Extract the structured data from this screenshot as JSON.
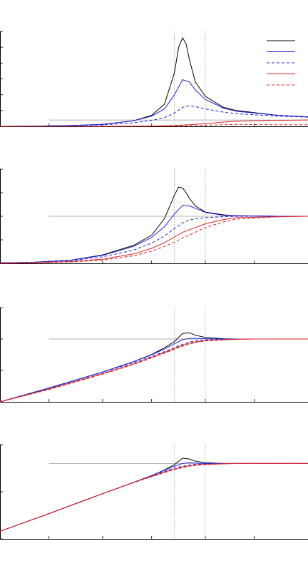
{
  "chart_data": {
    "type": "line",
    "x_scale": "log",
    "xlim": [
      0.1,
      100
    ],
    "reference_lines": {
      "vertical_x": [
        5,
        10
      ]
    },
    "legend": {
      "placement": "top-right",
      "entries": [
        {
          "series": "black-solid",
          "label": ""
        },
        {
          "series": "blue-solid",
          "label": ""
        },
        {
          "series": "blue-dashed",
          "label": ""
        },
        {
          "series": "red-solid",
          "label": ""
        },
        {
          "series": "red-dashed",
          "label": ""
        }
      ]
    },
    "styles": [
      {
        "key": "black-solid",
        "color": "#000000",
        "dash": "solid"
      },
      {
        "key": "blue-solid",
        "color": "#2222dd",
        "dash": "solid"
      },
      {
        "key": "blue-dashed",
        "color": "#2222dd",
        "dash": "dashed"
      },
      {
        "key": "red-solid",
        "color": "#dd2222",
        "dash": "solid"
      },
      {
        "key": "red-dashed",
        "color": "#dd2222",
        "dash": "dashed"
      }
    ],
    "panels": [
      {
        "ylim": [
          0,
          6
        ],
        "reference_y": 0.4,
        "reference_x_start": 0.3,
        "series": [
          {
            "style": "black-solid",
            "x": [
              0.1,
              0.2,
              0.5,
              1,
              2,
              3,
              4,
              5,
              5.5,
              6,
              6.5,
              7,
              8,
              10,
              15,
              20,
              50,
              100
            ],
            "y": [
              0.0,
              0.01,
              0.05,
              0.12,
              0.35,
              0.7,
              1.4,
              3.4,
              5.0,
              5.6,
              5.2,
              4.2,
              2.8,
              1.9,
              1.2,
              1.0,
              0.7,
              0.6
            ]
          },
          {
            "style": "blue-solid",
            "x": [
              0.1,
              0.2,
              0.5,
              1,
              2,
              3,
              4,
              5,
              6,
              7,
              8,
              10,
              15,
              20,
              50,
              100
            ],
            "y": [
              0.0,
              0.01,
              0.05,
              0.12,
              0.35,
              0.65,
              1.1,
              2.0,
              2.95,
              2.8,
              2.3,
              1.7,
              1.15,
              0.95,
              0.7,
              0.6
            ]
          },
          {
            "style": "blue-dashed",
            "x": [
              0.1,
              0.2,
              0.5,
              1,
              2,
              3,
              4,
              5,
              6,
              7,
              8,
              10,
              15,
              20,
              50,
              100
            ],
            "y": [
              0.0,
              0.01,
              0.04,
              0.09,
              0.22,
              0.38,
              0.55,
              0.85,
              1.2,
              1.3,
              1.25,
              1.1,
              0.9,
              0.8,
              0.65,
              0.58
            ]
          },
          {
            "style": "red-solid",
            "x": [
              0.1,
              0.5,
              1,
              2,
              3,
              5,
              7,
              10,
              15,
              20,
              50,
              100
            ],
            "y": [
              0.0,
              0.0,
              0.0,
              0.01,
              0.02,
              0.05,
              0.1,
              0.17,
              0.27,
              0.32,
              0.38,
              0.4
            ]
          },
          {
            "style": "red-dashed",
            "x": [
              0.1,
              0.5,
              1,
              2,
              3,
              5,
              7,
              10,
              15,
              20,
              50,
              100
            ],
            "y": [
              0.0,
              0.0,
              0.0,
              0.0,
              0.01,
              0.02,
              0.04,
              0.07,
              0.1,
              0.12,
              0.1,
              0.1
            ]
          }
        ]
      },
      {
        "ylim": [
          0,
          2
        ],
        "reference_y": 1,
        "reference_x_start": 0.3,
        "series": [
          {
            "style": "black-solid",
            "x": [
              0.1,
              0.2,
              0.5,
              1,
              2,
              3,
              4,
              5,
              5.5,
              6,
              6.5,
              7,
              8,
              10,
              15,
              20,
              50,
              100
            ],
            "y": [
              0.01,
              0.02,
              0.07,
              0.18,
              0.38,
              0.6,
              0.95,
              1.45,
              1.62,
              1.6,
              1.5,
              1.38,
              1.22,
              1.09,
              1.03,
              1.01,
              1.0,
              1.0
            ]
          },
          {
            "style": "blue-solid",
            "x": [
              0.1,
              0.2,
              0.5,
              1,
              2,
              3,
              4,
              5,
              6,
              7,
              8,
              10,
              15,
              20,
              50,
              100
            ],
            "y": [
              0.01,
              0.02,
              0.07,
              0.17,
              0.36,
              0.55,
              0.78,
              1.05,
              1.23,
              1.22,
              1.17,
              1.08,
              1.02,
              1.01,
              1.0,
              1.0
            ]
          },
          {
            "style": "blue-dashed",
            "x": [
              0.1,
              0.2,
              0.5,
              1,
              2,
              3,
              4,
              5,
              6,
              7,
              8,
              10,
              15,
              20,
              50,
              100
            ],
            "y": [
              0.01,
              0.02,
              0.06,
              0.14,
              0.28,
              0.43,
              0.58,
              0.74,
              0.86,
              0.92,
              0.95,
              0.97,
              0.99,
              1.0,
              1.0,
              1.0
            ]
          },
          {
            "style": "red-solid",
            "x": [
              0.1,
              0.2,
              0.5,
              1,
              2,
              3,
              4,
              5,
              6,
              8,
              10,
              15,
              20,
              50,
              100
            ],
            "y": [
              0.0,
              0.01,
              0.04,
              0.09,
              0.2,
              0.32,
              0.44,
              0.56,
              0.66,
              0.76,
              0.84,
              0.93,
              0.97,
              0.99,
              1.0
            ]
          },
          {
            "style": "red-dashed",
            "x": [
              0.1,
              0.2,
              0.5,
              1,
              2,
              3,
              4,
              5,
              6,
              8,
              10,
              15,
              20,
              50,
              100
            ],
            "y": [
              0.0,
              0.01,
              0.03,
              0.07,
              0.16,
              0.26,
              0.36,
              0.45,
              0.54,
              0.66,
              0.76,
              0.88,
              0.94,
              0.99,
              1.0
            ]
          }
        ]
      },
      {
        "ylim": [
          0,
          3
        ],
        "reference_y": 2,
        "reference_x_start": 0.3,
        "series": [
          {
            "style": "black-solid",
            "x": [
              0.1,
              0.3,
              1,
              2,
              3,
              4,
              5,
              6,
              7,
              8,
              10,
              15,
              20,
              30,
              50,
              100
            ],
            "y": [
              0.0,
              0.44,
              0.95,
              1.28,
              1.51,
              1.72,
              1.92,
              2.18,
              2.2,
              2.12,
              2.05,
              2.01,
              2.0,
              2.0,
              2.0,
              2.0
            ]
          },
          {
            "style": "blue-solid",
            "x": [
              0.1,
              0.3,
              1,
              2,
              3,
              4,
              5,
              6,
              7,
              8,
              10,
              15,
              20,
              30,
              50,
              100
            ],
            "y": [
              0.0,
              0.44,
              0.95,
              1.28,
              1.5,
              1.68,
              1.85,
              1.98,
              2.02,
              2.02,
              2.01,
              2.0,
              2.0,
              2.0,
              2.0,
              2.0
            ]
          },
          {
            "style": "blue-dashed",
            "x": [
              0.1,
              0.3,
              1,
              2,
              3,
              4,
              5,
              6,
              7,
              8,
              10,
              15,
              20,
              30,
              50,
              100
            ],
            "y": [
              0.0,
              0.43,
              0.94,
              1.25,
              1.45,
              1.6,
              1.73,
              1.83,
              1.9,
              1.94,
              1.97,
              1.99,
              2.0,
              2.0,
              2.0,
              2.0
            ]
          },
          {
            "style": "red-solid",
            "x": [
              0.1,
              0.3,
              1,
              2,
              3,
              4,
              5,
              6,
              7,
              8,
              10,
              15,
              20,
              30,
              50,
              100
            ],
            "y": [
              0.0,
              0.41,
              0.9,
              1.21,
              1.42,
              1.57,
              1.7,
              1.8,
              1.87,
              1.91,
              1.95,
              1.98,
              1.99,
              2.0,
              2.0,
              2.0
            ]
          },
          {
            "style": "red-dashed",
            "x": [
              0.1,
              0.3,
              1,
              2,
              3,
              4,
              5,
              6,
              7,
              8,
              10,
              15,
              20,
              30,
              50,
              100
            ],
            "y": [
              0.0,
              0.39,
              0.88,
              1.19,
              1.4,
              1.55,
              1.67,
              1.77,
              1.84,
              1.89,
              1.94,
              1.97,
              1.99,
              2.0,
              2.0,
              2.0
            ]
          }
        ]
      },
      {
        "ylim": [
          -1,
          1.5
        ],
        "reference_y": 1,
        "reference_x_start": 0.3,
        "series": [
          {
            "style": "black-solid",
            "x": [
              0.1,
              0.3,
              1,
              2,
              3,
              4,
              5,
              6,
              7,
              8,
              10,
              15,
              20,
              50,
              100
            ],
            "y": [
              -0.8,
              -0.33,
              0.2,
              0.5,
              0.68,
              0.83,
              0.97,
              1.14,
              1.12,
              1.06,
              1.02,
              1.0,
              1.0,
              1.0,
              1.0
            ]
          },
          {
            "style": "blue-solid",
            "x": [
              0.1,
              0.3,
              1,
              2,
              3,
              4,
              5,
              6,
              7,
              8,
              10,
              15,
              20,
              50,
              100
            ],
            "y": [
              -0.8,
              -0.33,
              0.2,
              0.5,
              0.68,
              0.82,
              0.93,
              1.0,
              1.02,
              1.01,
              1.0,
              1.0,
              1.0,
              1.0,
              1.0
            ]
          },
          {
            "style": "blue-dashed",
            "x": [
              0.1,
              0.3,
              1,
              2,
              3,
              4,
              5,
              6,
              7,
              8,
              10,
              15,
              20,
              50,
              100
            ],
            "y": [
              -0.8,
              -0.33,
              0.2,
              0.5,
              0.67,
              0.79,
              0.88,
              0.93,
              0.96,
              0.98,
              0.99,
              1.0,
              1.0,
              1.0,
              1.0
            ]
          },
          {
            "style": "red-solid",
            "x": [
              0.1,
              0.3,
              1,
              2,
              3,
              4,
              5,
              6,
              7,
              8,
              10,
              15,
              20,
              50,
              100
            ],
            "y": [
              -0.8,
              -0.33,
              0.2,
              0.5,
              0.66,
              0.77,
              0.85,
              0.91,
              0.94,
              0.96,
              0.98,
              0.99,
              1.0,
              1.0,
              1.0
            ]
          },
          {
            "style": "red-dashed",
            "x": [
              0.1,
              0.3,
              1,
              2,
              3,
              4,
              5,
              6,
              7,
              8,
              10,
              15,
              20,
              50,
              100
            ],
            "y": [
              -0.8,
              -0.33,
              0.2,
              0.49,
              0.65,
              0.76,
              0.84,
              0.89,
              0.93,
              0.95,
              0.97,
              0.99,
              1.0,
              1.0,
              1.0
            ]
          }
        ]
      }
    ]
  }
}
